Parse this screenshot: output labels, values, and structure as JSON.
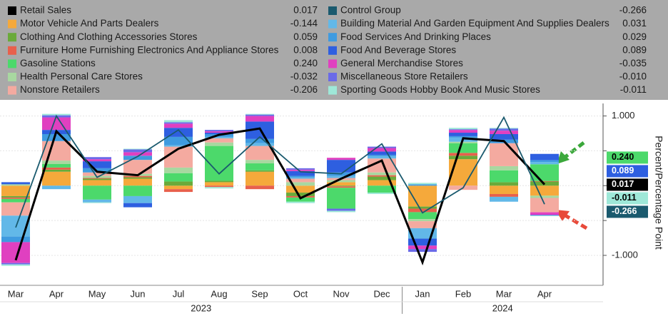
{
  "chart_data": {
    "type": "stacked-bar-line",
    "axis_label": "Percent/Percentage Point",
    "categories": [
      "Mar",
      "Apr",
      "May",
      "Jun",
      "Jul",
      "Aug",
      "Sep",
      "Oct",
      "Nov",
      "Dec",
      "Jan",
      "Feb",
      "Mar",
      "Apr"
    ],
    "years": [
      "2023",
      "2024"
    ],
    "ylim": [
      -1.43,
      1.18
    ],
    "yticks": [
      {
        "value": 1,
        "label": "1.000"
      },
      {
        "value": -1,
        "label": "-1.000"
      }
    ],
    "minor_yticks": [
      -0.5,
      0,
      0.5
    ],
    "grid": true,
    "series": [
      {
        "name": "Retail Sales",
        "color": "#000000",
        "kind": "line",
        "tag": true,
        "legend_value": "0.017",
        "values": [
          -1.07,
          0.78,
          0.2,
          0.15,
          0.53,
          0.73,
          0.82,
          -0.18,
          0.1,
          0.36,
          -1.1,
          0.68,
          0.64,
          0.017
        ]
      },
      {
        "name": "Motor Vehicle And Parts Dealers",
        "color": "#f5a93b",
        "kind": "bar",
        "legend_value": "-0.144",
        "values": [
          -0.15,
          0.2,
          0.08,
          0.1,
          -0.05,
          0.05,
          0.2,
          -0.1,
          0.05,
          0.08,
          -0.3,
          0.38,
          -0.12,
          -0.144
        ]
      },
      {
        "name": "Clothing And Clothing Accessories Stores",
        "color": "#6aaa3a",
        "kind": "bar",
        "legend_value": "0.059",
        "values": [
          -0.02,
          0.03,
          0.02,
          0.02,
          0.06,
          0.02,
          0.02,
          -0.05,
          -0.01,
          0.05,
          -0.03,
          0.05,
          0.05,
          0.059
        ]
      },
      {
        "name": "Furniture Home Furnishing Electronics And Appliance Stores",
        "color": "#e8604c",
        "kind": "bar",
        "legend_value": "0.008",
        "values": [
          -0.02,
          0.03,
          0.01,
          0.02,
          -0.04,
          -0.02,
          -0.05,
          -0.02,
          -0.02,
          0.02,
          -0.05,
          0.04,
          -0.04,
          0.008
        ]
      },
      {
        "name": "Gasoline Stations",
        "color": "#4cd96b",
        "kind": "bar",
        "tag": true,
        "legend_value": "0.240",
        "values": [
          -0.05,
          0.05,
          -0.2,
          -0.15,
          0.12,
          0.5,
          0.1,
          -0.06,
          -0.3,
          -0.1,
          -0.1,
          0.14,
          0.17,
          0.24
        ]
      },
      {
        "name": "Health Personal Care Stores",
        "color": "#a8d8a0",
        "kind": "bar",
        "legend_value": "-0.032",
        "values": [
          0.02,
          0.05,
          0.03,
          0.03,
          0.08,
          0.05,
          0.05,
          0.05,
          0.03,
          0.04,
          -0.03,
          0.02,
          0.06,
          -0.032
        ]
      },
      {
        "name": "Nonstore Retailers",
        "color": "#f4aaa0",
        "kind": "bar",
        "legend_value": "-0.206",
        "values": [
          -0.19,
          0.28,
          0.05,
          0.2,
          0.3,
          0.06,
          0.2,
          0.05,
          0.03,
          0.2,
          -0.1,
          -0.06,
          0.33,
          -0.206
        ]
      },
      {
        "name": "Control Group",
        "color": "#1a5a6e",
        "kind": "line",
        "tag": true,
        "legend_value": "-0.266",
        "values": [
          -0.6,
          1.0,
          0.12,
          0.42,
          0.8,
          0.17,
          0.7,
          0.2,
          0.17,
          0.6,
          -0.39,
          -0.03,
          0.98,
          -0.266
        ]
      },
      {
        "name": "Building Material And Garden Equipment And Supplies Dealers",
        "color": "#62b8e8",
        "kind": "bar",
        "legend_value": "0.031",
        "values": [
          -0.3,
          -0.05,
          -0.04,
          -0.1,
          0.02,
          0.02,
          0.04,
          0.02,
          0.03,
          0.03,
          -0.15,
          0.06,
          -0.07,
          0.031
        ]
      },
      {
        "name": "Food Services And Drinking Places",
        "color": "#3f9be0",
        "kind": "bar",
        "legend_value": "0.029",
        "values": [
          -0.08,
          0.1,
          0.06,
          0.06,
          0.12,
          0.04,
          0.06,
          0.02,
          0.05,
          0.02,
          0.02,
          0.02,
          0.05,
          0.029
        ]
      },
      {
        "name": "Food And Beverage Stores",
        "color": "#2e5fe0",
        "kind": "bar",
        "tag": true,
        "legend_value": "0.089",
        "values": [
          0.03,
          0.06,
          0.1,
          -0.06,
          0.13,
          0.02,
          0.25,
          0.07,
          0.18,
          0.05,
          -0.1,
          0.05,
          0.08,
          0.089
        ]
      },
      {
        "name": "General Merchandise Stores",
        "color": "#e040c0",
        "kind": "bar",
        "legend_value": "-0.035",
        "values": [
          -0.3,
          0.18,
          0.03,
          0.05,
          0.06,
          0.02,
          0.08,
          0.02,
          0.03,
          0.05,
          -0.05,
          0.04,
          0.05,
          -0.035
        ]
      },
      {
        "name": "Miscellaneous Store Retailers",
        "color": "#6a6ae8",
        "kind": "bar",
        "legend_value": "-0.010",
        "values": [
          -0.02,
          0.03,
          0.03,
          0.04,
          0.02,
          0.02,
          0.02,
          0.02,
          -0.03,
          0.02,
          -0.04,
          0.01,
          0.03,
          -0.01
        ]
      },
      {
        "name": "Sporting Goods Hobby Book And Music Stores",
        "color": "#9ee8d8",
        "kind": "bar",
        "tag": true,
        "legend_value": "-0.011",
        "values": [
          -0.02,
          0.02,
          -0.01,
          0.01,
          0.03,
          -0.02,
          0.01,
          -0.02,
          -0.02,
          -0.02,
          0.02,
          0.02,
          0.01,
          -0.011
        ]
      }
    ]
  }
}
